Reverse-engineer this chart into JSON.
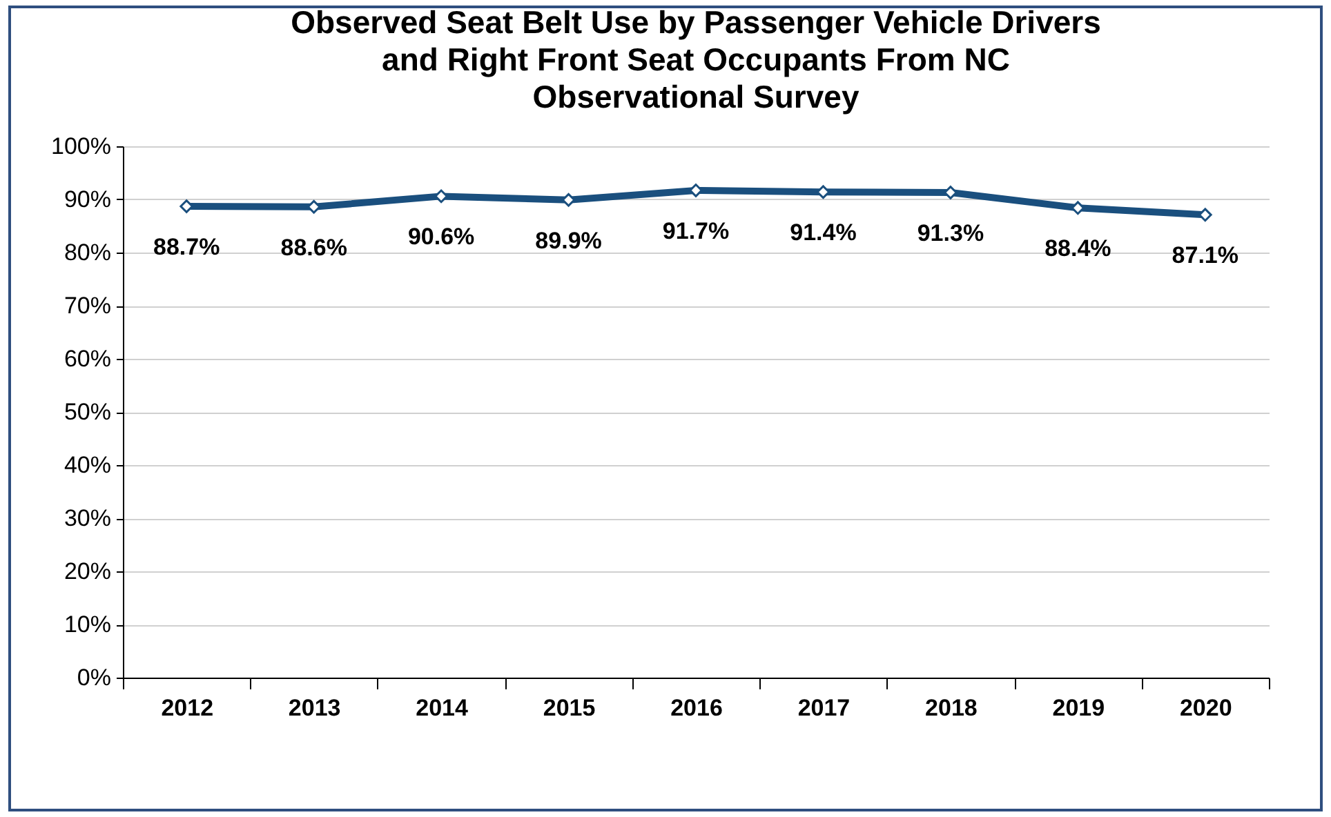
{
  "chart_data": {
    "type": "line",
    "title": "Observed Seat Belt Use by Passenger Vehicle Drivers and Right Front Seat Occupants From NC Observational Survey",
    "categories": [
      "2012",
      "2013",
      "2014",
      "2015",
      "2016",
      "2017",
      "2018",
      "2019",
      "2020"
    ],
    "series": [
      {
        "color": "#1a4f7e",
        "values": [
          88.7,
          88.6,
          90.6,
          89.9,
          91.7,
          91.4,
          91.3,
          88.4,
          87.1
        ],
        "value_labels": [
          "88.7%",
          "88.6%",
          "90.6%",
          "89.9%",
          "91.7%",
          "91.4%",
          "91.3%",
          "88.4%",
          "87.1%"
        ]
      }
    ],
    "ylim": [
      0,
      100
    ],
    "yticks": [
      {
        "value": 0,
        "label": "0%"
      },
      {
        "value": 10,
        "label": "10%"
      },
      {
        "value": 20,
        "label": "20%"
      },
      {
        "value": 30,
        "label": "30%"
      },
      {
        "value": 40,
        "label": "40%"
      },
      {
        "value": 50,
        "label": "50%"
      },
      {
        "value": 60,
        "label": "60%"
      },
      {
        "value": 70,
        "label": "70%"
      },
      {
        "value": 80,
        "label": "80%"
      },
      {
        "value": 90,
        "label": "90%"
      },
      {
        "value": 100,
        "label": "100%"
      }
    ],
    "grid": "y",
    "marker": "diamond",
    "line_style": "solid"
  }
}
